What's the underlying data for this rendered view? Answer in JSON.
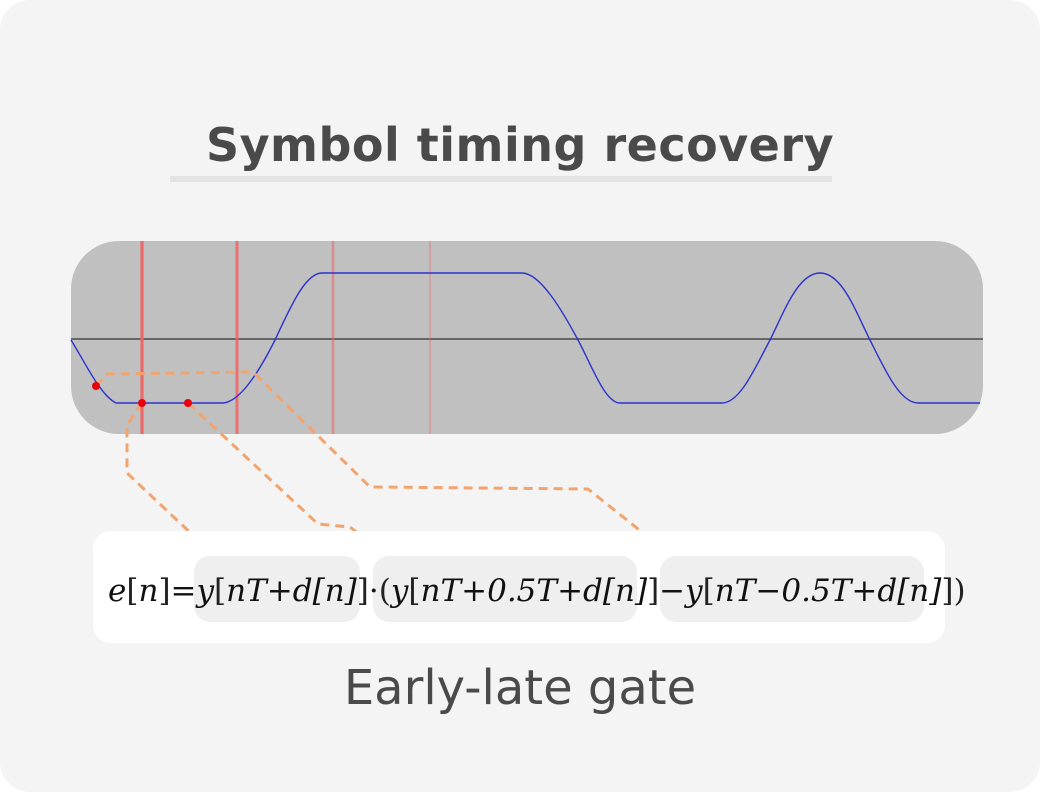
{
  "title": "Symbol timing recovery",
  "caption": "Early-late gate",
  "formula": {
    "lhs": "e",
    "index": "n",
    "equals": "=",
    "y": "y",
    "term_prompt": "nT+d[n]",
    "dot": "·",
    "term_late": "nT+0.5T+d[n]",
    "minus": "−",
    "term_early": "nT−0.5T+d[n]"
  },
  "colors": {
    "waveform": "#1f2bd0",
    "panel": "#c0c0c0",
    "baseline": "#666666",
    "gate_lines": "#f06a6a",
    "samples": "#e8000b",
    "connectors": "#f0a06a"
  }
}
